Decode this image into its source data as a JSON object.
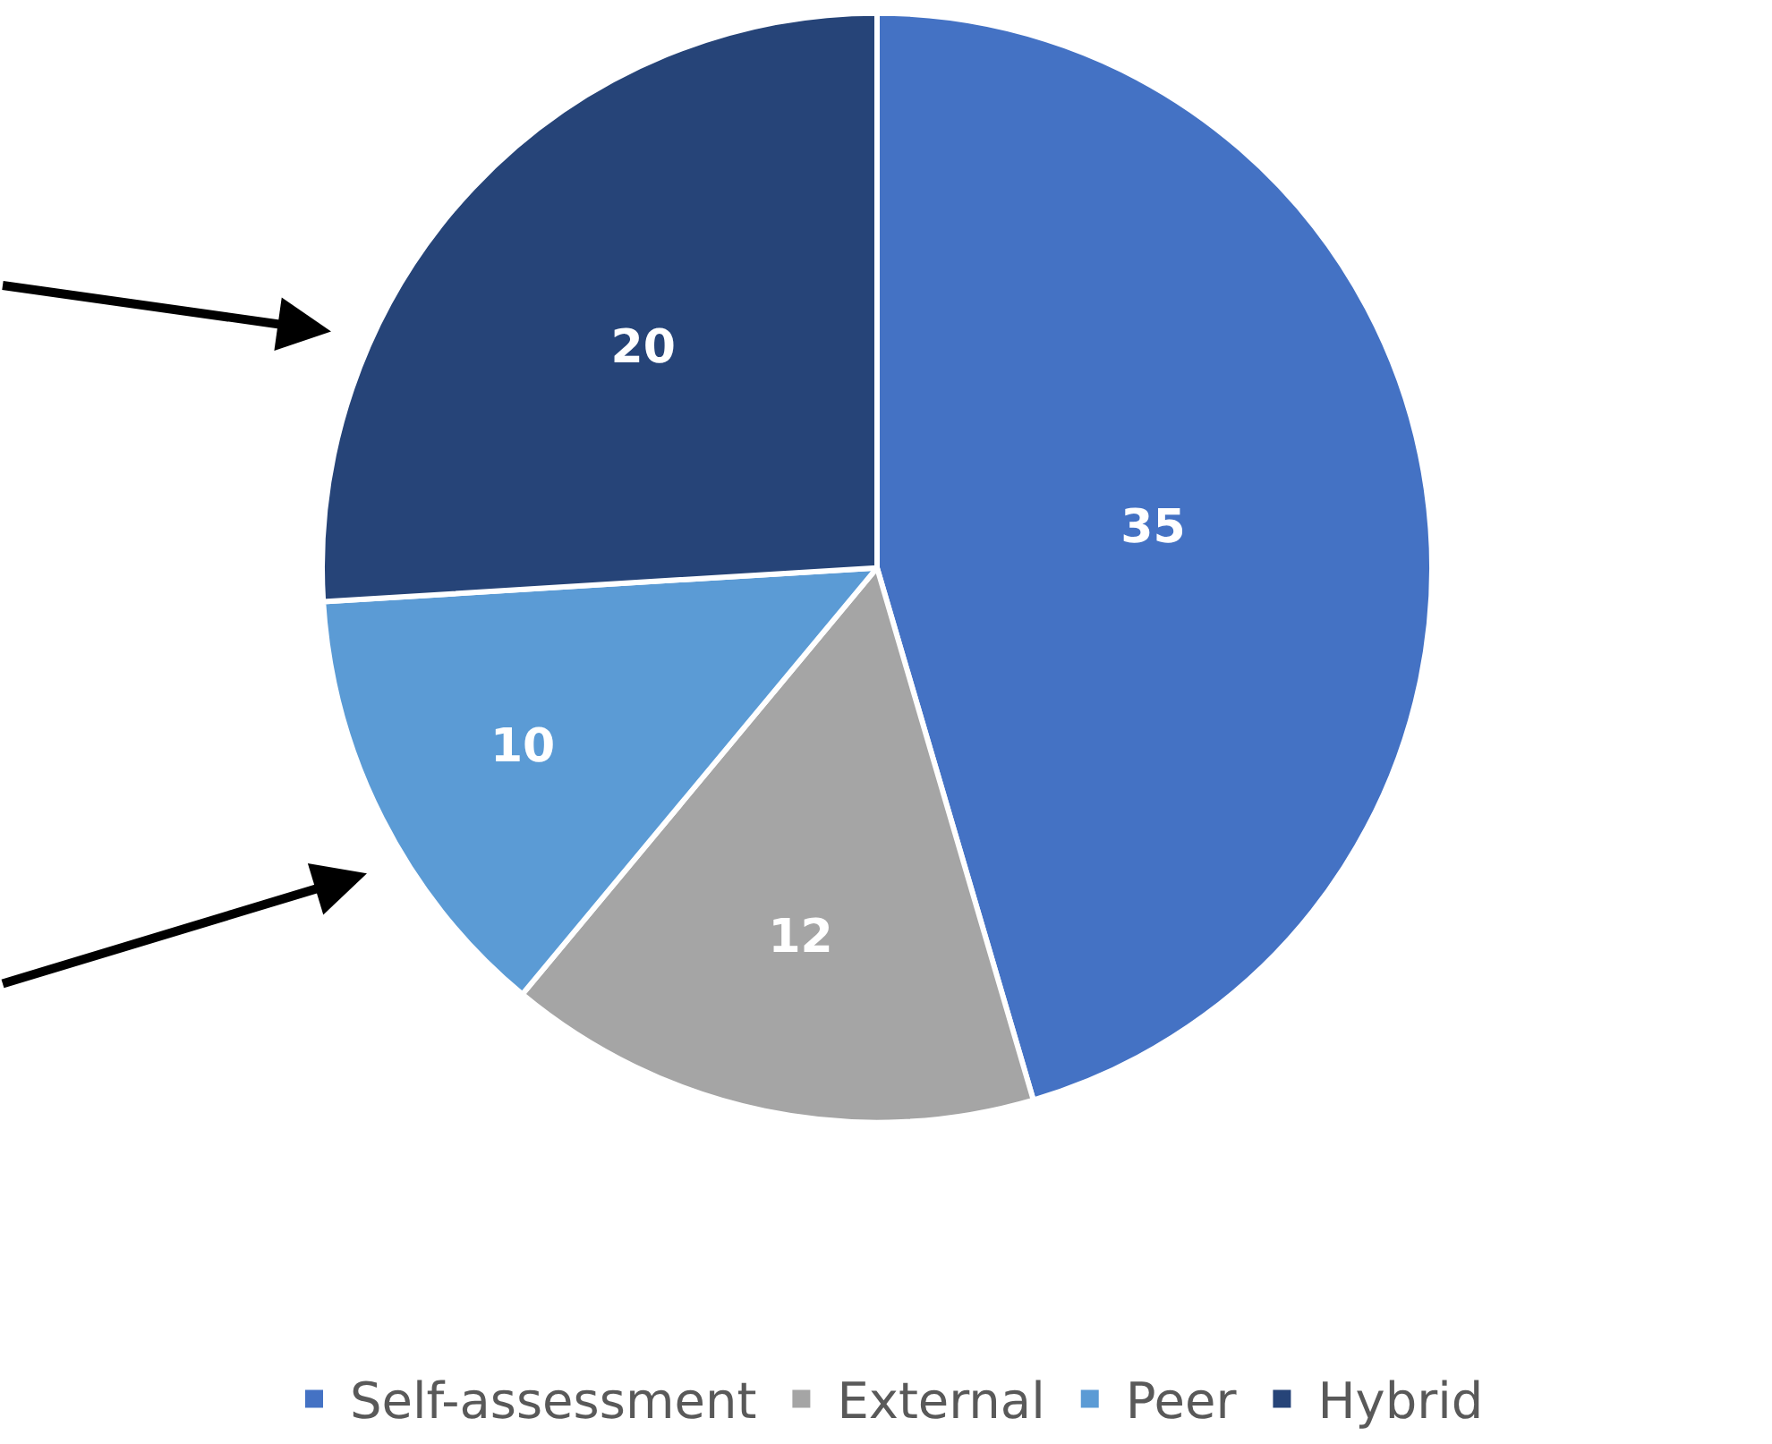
{
  "chart_data": {
    "type": "pie",
    "categories": [
      "Self-assessment",
      "External",
      "Peer",
      "Hybrid"
    ],
    "values": [
      35,
      12,
      10,
      20
    ],
    "colors": [
      "#4472c4",
      "#a5a5a5",
      "#5b9bd5",
      "#264478"
    ],
    "data_labels": true,
    "legend": "bottom"
  }
}
